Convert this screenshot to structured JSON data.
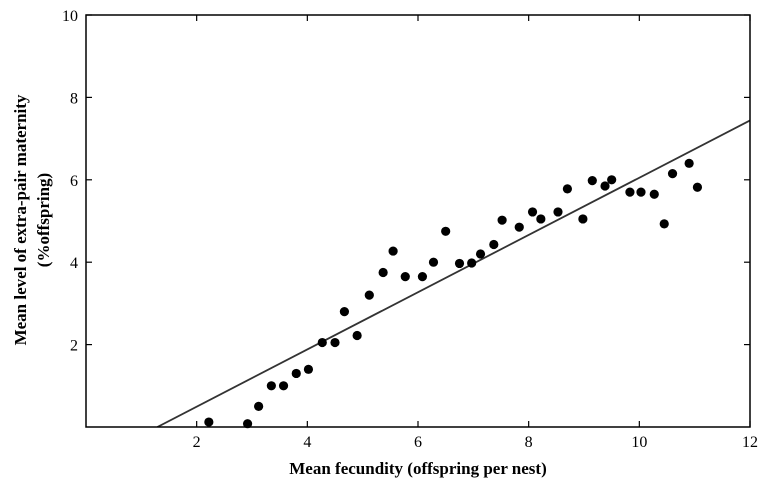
{
  "chart_data": {
    "type": "scatter",
    "title": "",
    "xlabel": "Mean fecundity (offspring per nest)",
    "ylabel_line1": "Mean level of extra-pair maternity",
    "ylabel_line2": "(%offspring)",
    "xlim": [
      0,
      12
    ],
    "ylim": [
      0,
      10
    ],
    "x_ticks": [
      2,
      4,
      6,
      8,
      10,
      12
    ],
    "y_ticks": [
      2,
      4,
      6,
      8,
      10
    ],
    "grid": false,
    "legend": "none",
    "point_color": "#000000",
    "line_color": "#333333",
    "points": [
      {
        "x": 2.22,
        "y": 0.12
      },
      {
        "x": 2.92,
        "y": 0.08
      },
      {
        "x": 3.12,
        "y": 0.5
      },
      {
        "x": 3.35,
        "y": 1.0
      },
      {
        "x": 3.57,
        "y": 1.0
      },
      {
        "x": 3.8,
        "y": 1.3
      },
      {
        "x": 4.02,
        "y": 1.4
      },
      {
        "x": 4.27,
        "y": 2.05
      },
      {
        "x": 4.5,
        "y": 2.05
      },
      {
        "x": 4.67,
        "y": 2.8
      },
      {
        "x": 4.9,
        "y": 2.22
      },
      {
        "x": 5.12,
        "y": 3.2
      },
      {
        "x": 5.37,
        "y": 3.75
      },
      {
        "x": 5.55,
        "y": 4.27
      },
      {
        "x": 5.77,
        "y": 3.65
      },
      {
        "x": 6.08,
        "y": 3.65
      },
      {
        "x": 6.28,
        "y": 4.0
      },
      {
        "x": 6.5,
        "y": 4.75
      },
      {
        "x": 6.75,
        "y": 3.97
      },
      {
        "x": 6.97,
        "y": 3.98
      },
      {
        "x": 7.13,
        "y": 4.2
      },
      {
        "x": 7.37,
        "y": 4.43
      },
      {
        "x": 7.52,
        "y": 5.02
      },
      {
        "x": 7.83,
        "y": 4.85
      },
      {
        "x": 8.07,
        "y": 5.22
      },
      {
        "x": 8.22,
        "y": 5.05
      },
      {
        "x": 8.53,
        "y": 5.22
      },
      {
        "x": 8.7,
        "y": 5.78
      },
      {
        "x": 8.98,
        "y": 5.05
      },
      {
        "x": 9.15,
        "y": 5.98
      },
      {
        "x": 9.38,
        "y": 5.85
      },
      {
        "x": 9.5,
        "y": 6.0
      },
      {
        "x": 9.83,
        "y": 5.7
      },
      {
        "x": 10.03,
        "y": 5.7
      },
      {
        "x": 10.27,
        "y": 5.65
      },
      {
        "x": 10.45,
        "y": 4.93
      },
      {
        "x": 10.6,
        "y": 6.15
      },
      {
        "x": 10.9,
        "y": 6.4
      },
      {
        "x": 11.05,
        "y": 5.82
      }
    ],
    "regression_line": {
      "x": [
        1.29,
        12.0
      ],
      "y": [
        0.0,
        7.44
      ]
    }
  }
}
